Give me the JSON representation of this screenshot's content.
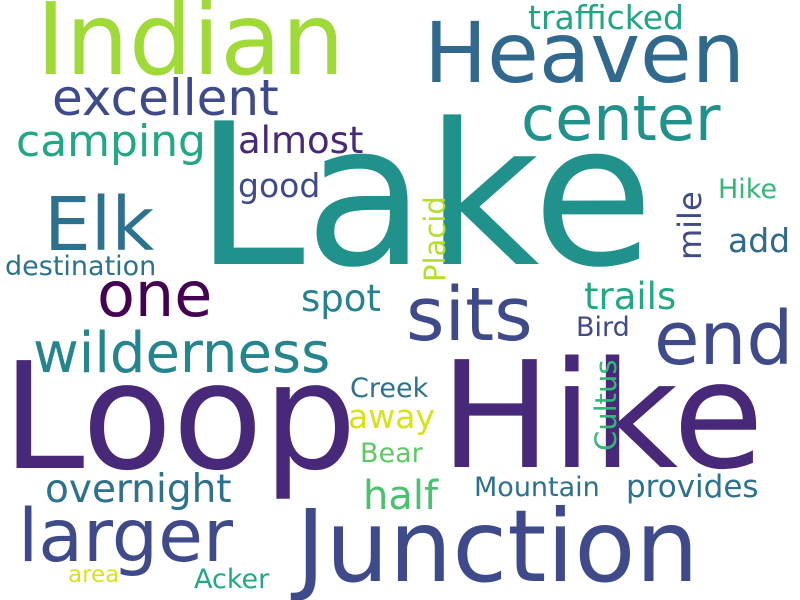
{
  "words": [
    {
      "text": "Lake",
      "color": "#21918c"
    },
    {
      "text": "Loop",
      "color": "#482878"
    },
    {
      "text": "Hike",
      "color": "#482878"
    },
    {
      "text": "Junction",
      "color": "#3e4a89"
    },
    {
      "text": "Indian",
      "color": "#a0da39"
    },
    {
      "text": "Heaven",
      "color": "#31688e"
    },
    {
      "text": "excellent",
      "color": "#3e4a89"
    },
    {
      "text": "center",
      "color": "#21918c"
    },
    {
      "text": "trafficked",
      "color": "#21a685"
    },
    {
      "text": "camping",
      "color": "#22a884"
    },
    {
      "text": "almost",
      "color": "#482878"
    },
    {
      "text": "Elk",
      "color": "#2c728e"
    },
    {
      "text": "good",
      "color": "#3e4a89"
    },
    {
      "text": "one",
      "color": "#440154"
    },
    {
      "text": "sits",
      "color": "#3e4a89"
    },
    {
      "text": "end",
      "color": "#3e4a89"
    },
    {
      "text": "destination",
      "color": "#2c728e"
    },
    {
      "text": "mile",
      "color": "#3e4a89"
    },
    {
      "text": "Placid",
      "color": "#b5de2b"
    },
    {
      "text": "Hike",
      "color": "#35b779"
    },
    {
      "text": "add",
      "color": "#31688e"
    },
    {
      "text": "wilderness",
      "color": "#25858e"
    },
    {
      "text": "spot",
      "color": "#26828e"
    },
    {
      "text": "trails",
      "color": "#22a884"
    },
    {
      "text": "Bird",
      "color": "#3e4a89"
    },
    {
      "text": "Cultus",
      "color": "#35b779"
    },
    {
      "text": "Creek",
      "color": "#2c728e"
    },
    {
      "text": "away",
      "color": "#d8e219"
    },
    {
      "text": "Bear",
      "color": "#5ec962"
    },
    {
      "text": "overnight",
      "color": "#2c728e"
    },
    {
      "text": "half",
      "color": "#4ac16d"
    },
    {
      "text": "Mountain",
      "color": "#2c728e"
    },
    {
      "text": "provides",
      "color": "#2c728e"
    },
    {
      "text": "larger",
      "color": "#3e4a89"
    },
    {
      "text": "area",
      "color": "#d8e219"
    },
    {
      "text": "Acker",
      "color": "#22a884"
    }
  ]
}
